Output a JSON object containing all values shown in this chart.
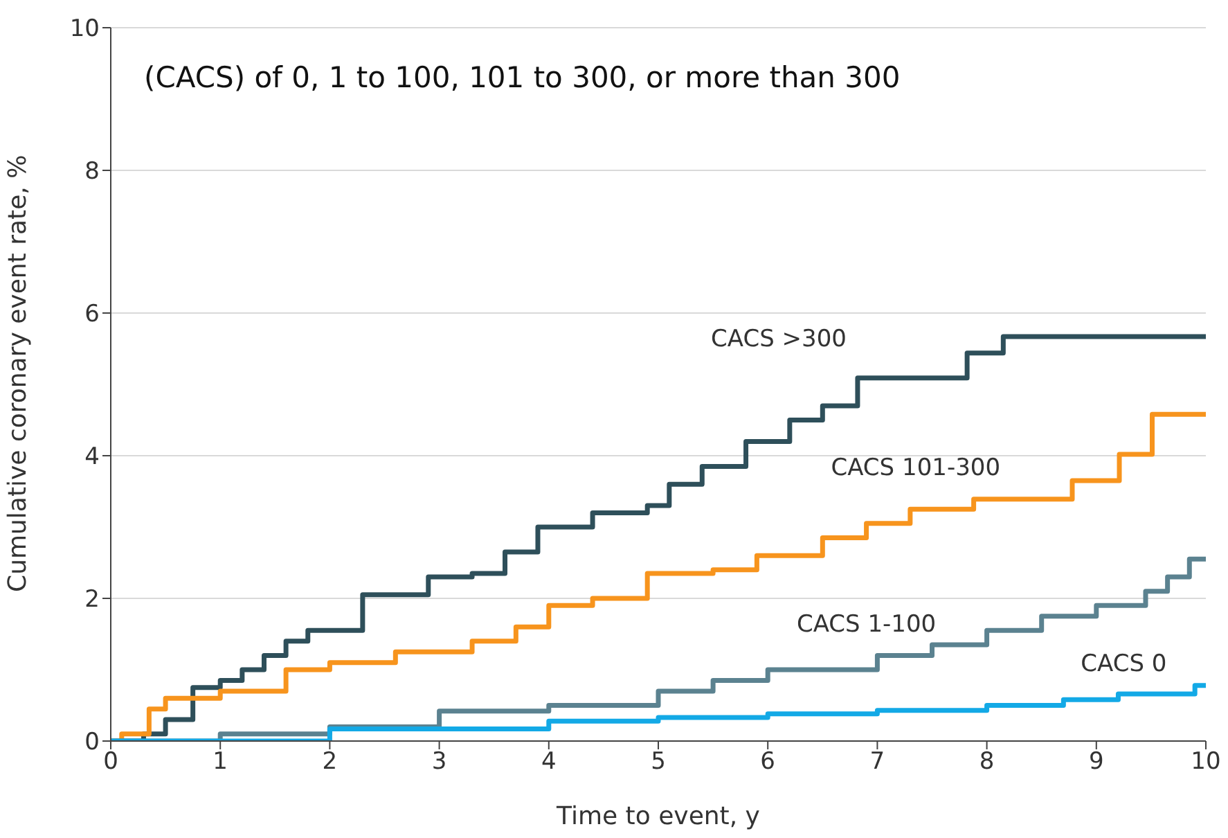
{
  "chart_data": {
    "type": "step",
    "title": "(CACS) of 0, 1 to 100, 101 to 300, or more than 300",
    "xlabel": "Time to event, y",
    "ylabel": "Cumulative coronary event rate, %",
    "xlim": [
      0,
      10
    ],
    "xticks": [
      0,
      1,
      2,
      3,
      4,
      5,
      6,
      7,
      8,
      9,
      10
    ],
    "ylim": [
      0,
      10
    ],
    "yticks": [
      0,
      2,
      4,
      6,
      8,
      10
    ],
    "grid": "y",
    "legend": false,
    "series": [
      {
        "name": "CACS >300",
        "color": "#2e4f5a",
        "x": [
          0,
          0.3,
          0.5,
          0.75,
          1.0,
          1.2,
          1.4,
          1.6,
          1.8,
          2.3,
          2.5,
          2.9,
          3.3,
          3.6,
          3.9,
          4.4,
          4.9,
          5.1,
          5.4,
          5.8,
          6.2,
          6.5,
          6.82,
          7.82,
          8.15,
          10
        ],
        "values": [
          0,
          0.1,
          0.3,
          0.75,
          0.85,
          1.0,
          1.2,
          1.4,
          1.55,
          2.05,
          2.05,
          2.3,
          2.35,
          2.65,
          3.0,
          3.2,
          3.3,
          3.6,
          3.85,
          4.2,
          4.5,
          4.7,
          5.09,
          5.44,
          5.67,
          5.67
        ]
      },
      {
        "name": "CACS 101-300",
        "color": "#f7941d",
        "x": [
          0,
          0.1,
          0.35,
          0.5,
          1.0,
          1.6,
          2.0,
          2.6,
          3.3,
          3.7,
          4.0,
          4.4,
          4.9,
          5.5,
          5.9,
          6.5,
          6.9,
          7.3,
          7.88,
          8.78,
          9.21,
          9.51,
          10
        ],
        "values": [
          0,
          0.1,
          0.45,
          0.6,
          0.7,
          1.0,
          1.1,
          1.25,
          1.4,
          1.6,
          1.9,
          2.0,
          2.35,
          2.4,
          2.6,
          2.85,
          3.05,
          3.25,
          3.39,
          3.65,
          4.02,
          4.58,
          4.58
        ]
      },
      {
        "name": "CACS 1-100",
        "color": "#5b8290",
        "x": [
          0,
          1,
          2,
          3,
          4,
          5,
          5.5,
          6,
          7,
          7.5,
          8,
          8.5,
          9,
          9.45,
          9.65,
          9.85,
          10
        ],
        "values": [
          0,
          0.1,
          0.2,
          0.42,
          0.5,
          0.7,
          0.85,
          1.0,
          1.2,
          1.35,
          1.55,
          1.75,
          1.9,
          2.1,
          2.3,
          2.55,
          2.55
        ]
      },
      {
        "name": "CACS 0",
        "color": "#13a9e6",
        "x": [
          0,
          2,
          4,
          5,
          6,
          7,
          8,
          8.7,
          9.2,
          9.9,
          10
        ],
        "values": [
          0,
          0.17,
          0.28,
          0.33,
          0.38,
          0.43,
          0.5,
          0.58,
          0.66,
          0.78,
          0.78
        ]
      }
    ]
  }
}
